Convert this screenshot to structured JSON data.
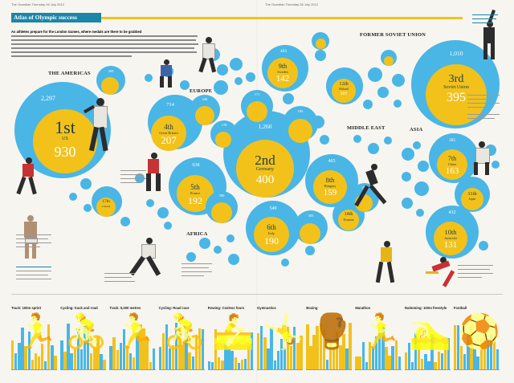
{
  "header": {
    "title": "Atlas of Olympic success",
    "folio_left": "The Guardian Thursday 26 July 2012",
    "folio_right": "The Guardian Thursday 26 July 2012",
    "intro_lead": "As athletes prepare for the London Games, where medals are there to be grabbed"
  },
  "regions": {
    "americas": "THE AMERICAS",
    "europe": "EUROPE",
    "former_soviet": "FORMER SOVIET UNION",
    "middle_east": "MIDDLE EAST",
    "asia": "ASIA",
    "africa": "AFRICA"
  },
  "bubbles": {
    "us": {
      "total": "2,297",
      "rank": "1st",
      "country": "US",
      "gold": "930"
    },
    "gb": {
      "total": "714",
      "rank": "4th",
      "country": "Great Britain",
      "gold": "207"
    },
    "germany": {
      "total": "1,260",
      "rank": "2nd",
      "country": "Germany",
      "gold": "400"
    },
    "soviet": {
      "total": "1,010",
      "rank": "3rd",
      "country": "Soviet Union",
      "gold": "395"
    },
    "france": {
      "total": "638",
      "rank": "5th",
      "country": "France",
      "gold": "192"
    },
    "italy": {
      "total": "549",
      "rank": "6th",
      "country": "Italy",
      "gold": "190"
    },
    "china": {
      "total": "385",
      "rank": "7th",
      "country": "China",
      "gold": "163"
    },
    "hungary": {
      "total": "465",
      "rank": "8th",
      "country": "Hungary",
      "gold": "159"
    },
    "sweden": {
      "total": "483",
      "rank": "9th",
      "country": "Sweden",
      "gold": "142"
    },
    "australia": {
      "total": "432",
      "rank": "10th",
      "country": "Australia",
      "gold": "131"
    },
    "japan": {
      "rank": "11th",
      "country": "Japan"
    },
    "finland": {
      "rank": "12th",
      "country": "Finland",
      "gold": "101"
    },
    "romania": {
      "rank": "14th",
      "country": "Romania"
    },
    "canada": {
      "rank": "17th",
      "country": "Canada"
    },
    "small_totals": [
      "260",
      "246",
      "171",
      "185",
      "170",
      "303",
      "292",
      "300"
    ]
  },
  "sports": [
    {
      "label": "Track: 100m sprint",
      "icon": "sprint-icon"
    },
    {
      "label": "Cycling: track and road",
      "icon": "cycling-icon"
    },
    {
      "label": "Track: 5,000 metres",
      "icon": "runner-icon"
    },
    {
      "label": "Cycling: Road race",
      "icon": "road-cycling-icon"
    },
    {
      "label": "Rowing: Coxless fours",
      "icon": "rowing-icon"
    },
    {
      "label": "Gymnastics",
      "icon": "gymnastics-icon"
    },
    {
      "label": "Boxing",
      "icon": "boxing-icon"
    },
    {
      "label": "Marathon",
      "icon": "marathon-icon"
    },
    {
      "label": "Swimming: 100m freestyle",
      "icon": "swimming-icon"
    },
    {
      "label": "Football",
      "icon": "football-icon"
    }
  ],
  "colors": {
    "blue": "#49b6e6",
    "yellow": "#f2c21b",
    "title_bar": "#1b86a8"
  }
}
